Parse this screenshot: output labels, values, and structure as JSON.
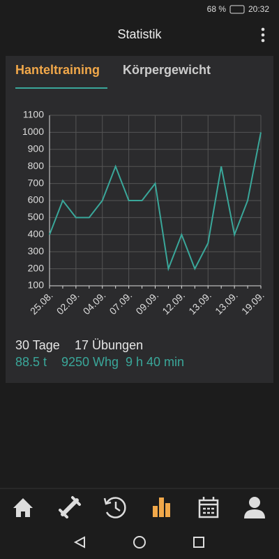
{
  "status_bar": {
    "battery": "68 %",
    "time": "20:32"
  },
  "header": {
    "title": "Statistik"
  },
  "tabs": [
    "Hanteltraining",
    "Körpergewicht"
  ],
  "chart_data": {
    "type": "line",
    "categories": [
      "25.08.",
      null,
      "02.09.",
      null,
      "04.09.",
      null,
      "07.09.",
      null,
      "09.09.",
      null,
      "12.09.",
      null,
      "13.09.",
      null,
      "13.09.",
      null,
      "19.09."
    ],
    "values": [
      400,
      600,
      500,
      500,
      600,
      800,
      600,
      600,
      700,
      200,
      400,
      200,
      350,
      800,
      400,
      600,
      1000
    ],
    "color": "#3aa79a",
    "ylim": [
      100,
      1100
    ],
    "yticks": [
      100,
      200,
      300,
      400,
      500,
      600,
      700,
      800,
      900,
      1000,
      1100
    ],
    "grid": true
  },
  "stats": {
    "line1": [
      "30 Tage",
      "17 Übungen"
    ],
    "line2": [
      "88.5 t",
      "9250 Whg",
      "9 h 40 min"
    ]
  }
}
